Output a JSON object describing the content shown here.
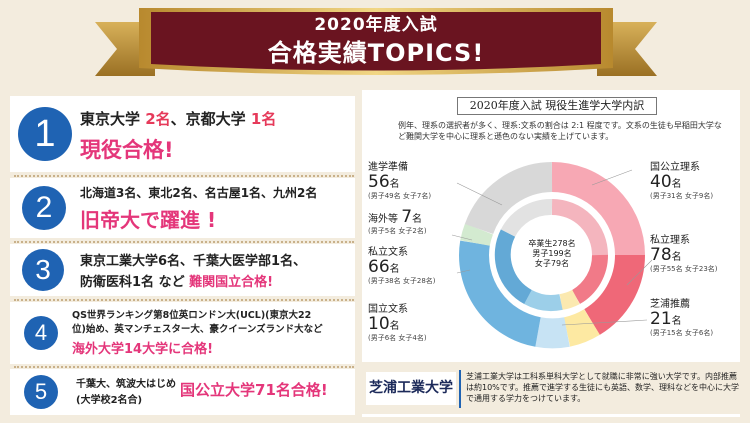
{
  "banner": {
    "line1": "2020年度入試",
    "line2": "合格実績TOPICS!"
  },
  "items": [
    {
      "num": "1",
      "line1a": "東京大学 ",
      "line1b": "2名",
      "line1c": "、京都大学 ",
      "line1d": "1名",
      "line2": "現役合格!"
    },
    {
      "num": "2",
      "line1": "北海道3名、東北2名、名古屋1名、九州2名",
      "line2": "旧帝大で躍進 !"
    },
    {
      "num": "3",
      "line1": "東京工業大学6名、千葉大医学部1名、",
      "line2a": "防衛医科1名 など ",
      "line2b": "難関国立合格!"
    },
    {
      "num": "4",
      "line1": "QS世界ランキング第8位英ロンドン大(UCL)(東京大22",
      "line2": "位)始め、英マンチェスター大、豪クイーンズランド大など",
      "line3": "海外大学14大学に合格!"
    },
    {
      "num": "5",
      "line1": "千葉大、筑波大はじめ",
      "line2": "(大学校2名合)",
      "highlight": "国公立大学71名合格!"
    }
  ],
  "panel": {
    "title": "2020年度入試 現役生進学大学内訳",
    "desc": "例年、理系の選択者が多く、理系:文系の割合は 2:1 程度です。文系の生徒も早稲田大学など難関大学を中心に理系と遜色のない実績を上げています。",
    "center": {
      "line1": "卒業生278名",
      "line2": "男子199名",
      "line3": "女子79名"
    },
    "categories": [
      {
        "label": "進学準備",
        "count": "56",
        "unit": "名",
        "detail": "(男子49名 女子7名)"
      },
      {
        "label": "海外等",
        "count": "7",
        "unit": "名",
        "detail": "(男子5名 女子2名)"
      },
      {
        "label": "私立文系",
        "count": "66",
        "unit": "名",
        "detail": "(男子38名 女子28名)"
      },
      {
        "label": "国立文系",
        "count": "10",
        "unit": "名",
        "detail": "(男子6名 女子4名)"
      },
      {
        "label": "国公立理系",
        "count": "40",
        "unit": "名",
        "detail": "(男子31名 女子9名)"
      },
      {
        "label": "私立理系",
        "count": "78",
        "unit": "名",
        "detail": "(男子55名 女子23名)"
      },
      {
        "label": "芝浦推薦",
        "count": "21",
        "unit": "名",
        "detail": "(男子15名 女子6名)"
      }
    ],
    "colors": {
      "kokoritsu_rikei": "#f7a8b4",
      "shiritsu_rikei": "#ef6878",
      "shibaura": "#fde9a2",
      "kokuritsu_bunkei": "#c7e3f4",
      "shiritsu_bunkei": "#6fb4df",
      "kaigai": "#d3ead0",
      "junbi": "#d8d8d8"
    }
  },
  "footer": {
    "name": "芝浦工業大学",
    "desc": "芝浦工業大学は工科系単科大学として就職に非常に強い大学です。内部推薦は約10%です。推薦で進学する生徒にも英語、数学、理科などを中心に大学で通用する学力をつけています。"
  }
}
